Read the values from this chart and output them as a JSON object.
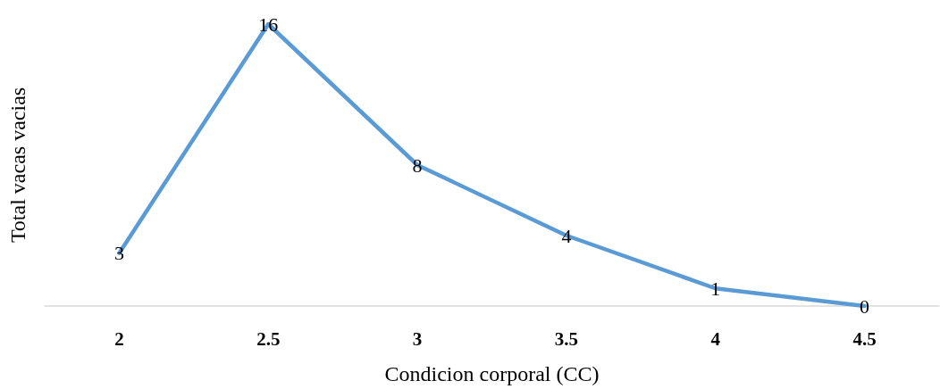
{
  "chart_data": {
    "type": "line",
    "xlabel": "Condicion corporal (CC)",
    "ylabel": "Total vacas vacias",
    "categories": [
      "2",
      "2.5",
      "3",
      "3.5",
      "4",
      "4.5"
    ],
    "series": [
      {
        "color": "#5b9bd5",
        "values": [
          3,
          16,
          8,
          4,
          1,
          0
        ]
      }
    ],
    "tick_labels": "x",
    "data_labels": true,
    "grid": false,
    "marker": "none",
    "line_style": "solid"
  }
}
